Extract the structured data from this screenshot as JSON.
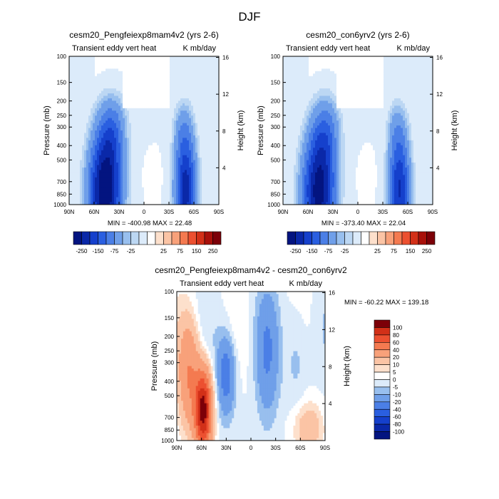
{
  "page_title": "DJF",
  "colors": {
    "neg": [
      "#dcebfa",
      "#bcd7f3",
      "#98bfee",
      "#6f9fe9",
      "#4b7fe6",
      "#2a5fe0",
      "#1540cc",
      "#0a28a8",
      "#031480"
    ],
    "pos": [
      "#ffffff",
      "#fde0cc",
      "#fbc4a5",
      "#f8a17a",
      "#f47a50",
      "#ec5030",
      "#d23018",
      "#a8100a",
      "#7c0008"
    ]
  },
  "chart_data": [
    {
      "type": "heatmap",
      "subtype": "filled-contour pressure-latitude cross-section",
      "title": "cesm20_Pengfeiexp8mam4v2 (yrs 2-6)",
      "left_label": "Transient eddy vert heat",
      "right_label": "K mb/day",
      "ylabel": "Pressure (mb)",
      "y2label": "Height (km)",
      "x_ticks": [
        "90N",
        "60N",
        "30N",
        "0",
        "30S",
        "60S",
        "90S"
      ],
      "y_ticks": [
        "100",
        "150",
        "200",
        "250",
        "300",
        "400",
        "500",
        "700",
        "850",
        "1000"
      ],
      "y2_ticks": [
        "16",
        "12",
        "8",
        "4"
      ],
      "x_range": [
        90,
        -90
      ],
      "y_range": [
        100,
        1000
      ],
      "y_scale": "log (pressure)",
      "stats": "MIN = -400.98  MAX =  22.48",
      "min": -400.98,
      "max": 22.48,
      "colorbar_ticks": [
        "-250",
        "-150",
        "-75",
        "-25",
        "25",
        "75",
        "150",
        "250"
      ]
    },
    {
      "type": "heatmap",
      "subtype": "filled-contour pressure-latitude cross-section",
      "title": "cesm20_con6yrv2 (yrs 2-6)",
      "left_label": "Transient eddy vert heat",
      "right_label": "K mb/day",
      "ylabel": "Pressure (mb)",
      "y2label": "Height (km)",
      "x_ticks": [
        "90N",
        "60N",
        "30N",
        "0",
        "30S",
        "60S",
        "90S"
      ],
      "y_ticks": [
        "100",
        "150",
        "200",
        "250",
        "300",
        "400",
        "500",
        "700",
        "850",
        "1000"
      ],
      "y2_ticks": [
        "16",
        "12",
        "8",
        "4"
      ],
      "x_range": [
        90,
        -90
      ],
      "y_range": [
        100,
        1000
      ],
      "y_scale": "log (pressure)",
      "stats": "MIN = -373.40  MAX =  22.04",
      "min": -373.4,
      "max": 22.04,
      "colorbar_ticks": [
        "-250",
        "-150",
        "-75",
        "-25",
        "25",
        "75",
        "150",
        "250"
      ]
    },
    {
      "type": "heatmap",
      "subtype": "filled-contour pressure-latitude difference",
      "title": "cesm20_Pengfeiexp8mam4v2 - cesm20_con6yrv2",
      "left_label": "Transient eddy vert heat",
      "right_label": "K mb/day",
      "ylabel": "Pressure (mb)",
      "y2label": "Height (km)",
      "x_ticks": [
        "90N",
        "60N",
        "30N",
        "0",
        "30S",
        "60S",
        "90S"
      ],
      "y_ticks": [
        "100",
        "150",
        "200",
        "250",
        "300",
        "400",
        "500",
        "700",
        "850",
        "1000"
      ],
      "y2_ticks": [
        "16",
        "12",
        "8",
        "4"
      ],
      "x_range": [
        90,
        -90
      ],
      "y_range": [
        100,
        1000
      ],
      "y_scale": "log (pressure)",
      "stats": "MIN = -60.22  MAX = 139.18",
      "min": -60.22,
      "max": 139.18,
      "colorbar_ticks": [
        "100",
        "80",
        "60",
        "40",
        "20",
        "10",
        "5",
        "0",
        "-5",
        "-10",
        "-20",
        "-40",
        "-60",
        "-80",
        "-100"
      ]
    }
  ]
}
